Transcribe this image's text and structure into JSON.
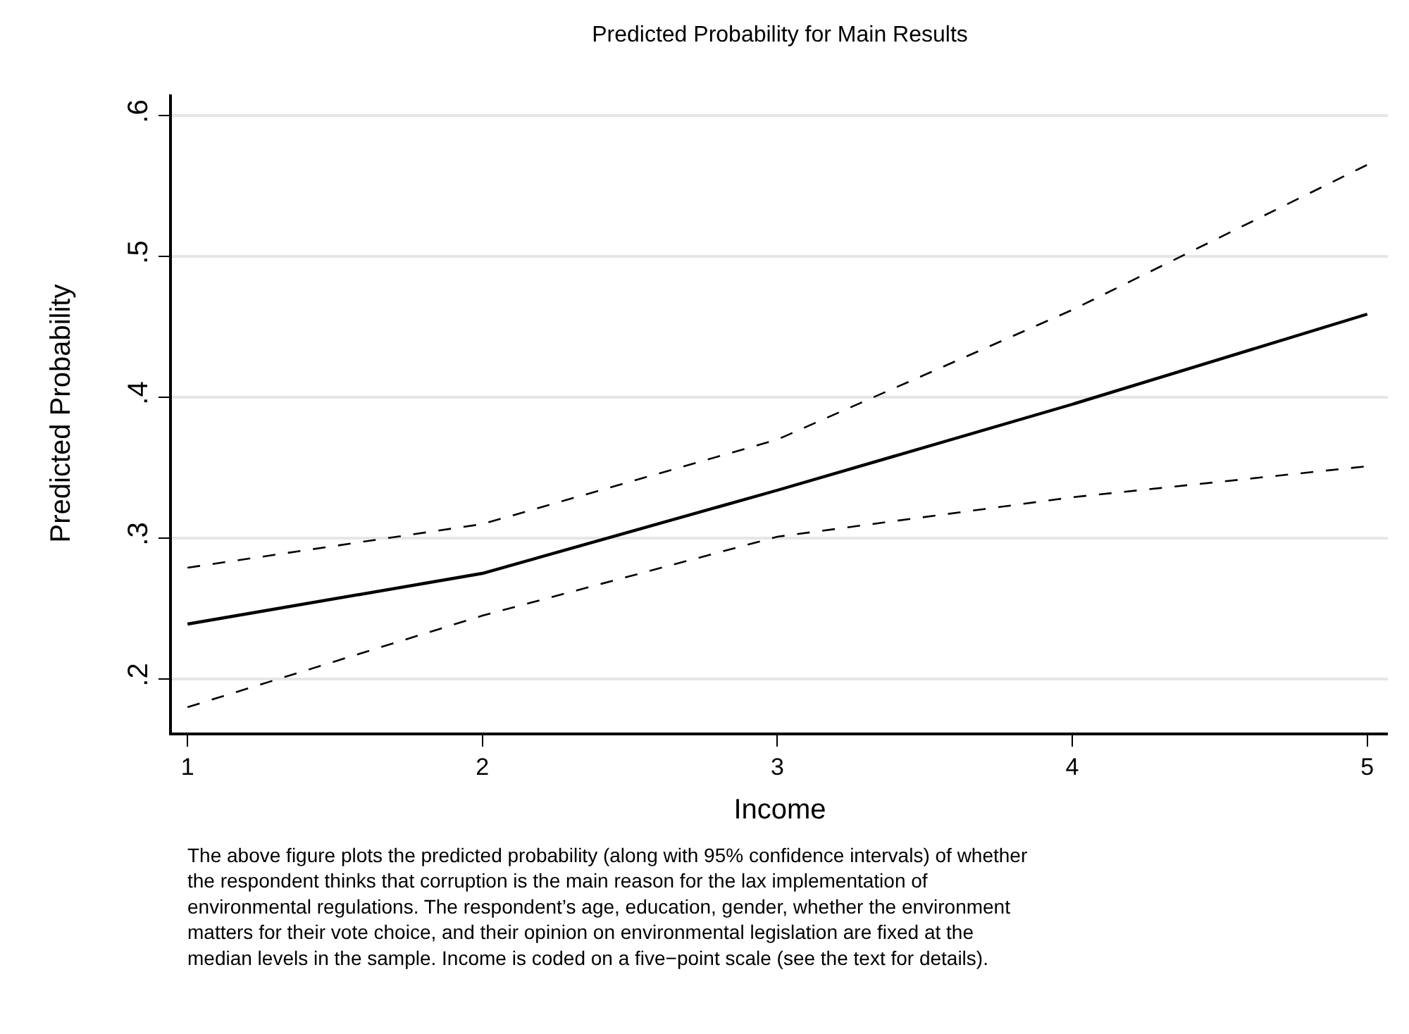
{
  "chart_data": {
    "type": "line",
    "title": "Predicted Probability for Main Results",
    "xlabel": "Income",
    "ylabel": "Predicted Probability",
    "x": [
      1,
      2,
      3,
      4,
      5
    ],
    "series": [
      {
        "color": "#000000",
        "line_style": "solid",
        "values": [
          0.239,
          0.275,
          0.334,
          0.395,
          0.459
        ]
      },
      {
        "color": "#000000",
        "line_style": "dashed",
        "values": [
          0.279,
          0.31,
          0.37,
          0.462,
          0.565
        ]
      },
      {
        "color": "#000000",
        "line_style": "dashed",
        "values": [
          0.18,
          0.245,
          0.301,
          0.329,
          0.351
        ]
      }
    ],
    "xlim": [
      0.947,
      5.07
    ],
    "xticks": [
      1,
      2,
      3,
      4,
      5
    ],
    "ylim": [
      0.162,
      0.615
    ],
    "yticks": [
      {
        "value": 0.2,
        "label": ".2"
      },
      {
        "value": 0.3,
        "label": ".3"
      },
      {
        "value": 0.4,
        "label": ".4"
      },
      {
        "value": 0.5,
        "label": ".5"
      },
      {
        "value": 0.6,
        "label": ".6"
      }
    ],
    "grid": "y",
    "marker": "none",
    "annotations": [
      "The above figure plots the predicted probability (along with 95% confidence intervals) of whether\nthe respondent thinks that corruption is the main reason for the lax implementation of\nenvironmental regulations. The respondent’s age, education, gender, whether the environment\nmatters for their vote choice, and their opinion on environmental legislation are fixed at the\nmedian levels in the sample. Income is coded on a five−point scale (see the text for details)."
    ]
  }
}
